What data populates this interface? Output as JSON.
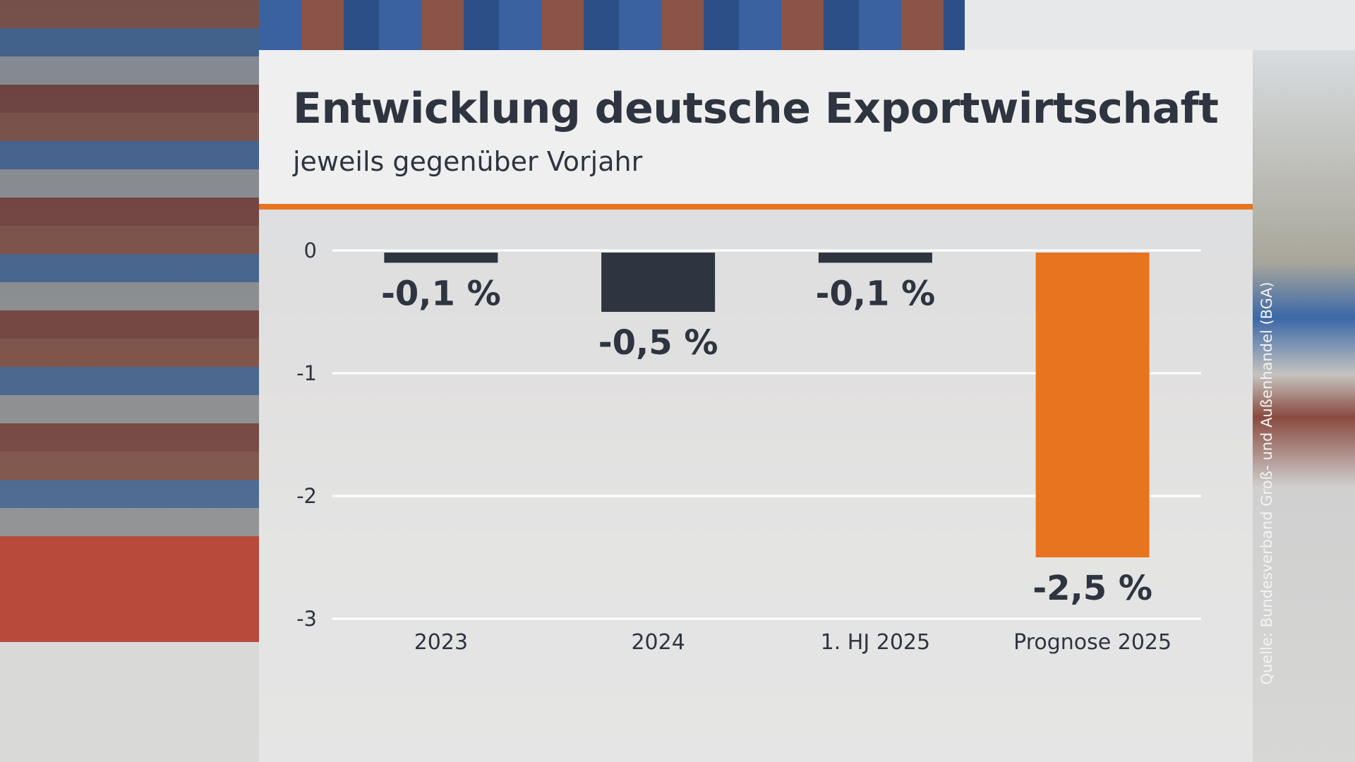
{
  "header": {
    "title": "Entwicklung deutsche Exportwirtschaft",
    "subtitle": "jeweils gegenüber Vorjahr"
  },
  "source": "Quelle: Bundesverband Groß- und Außenhandel (BGA)",
  "chart_data": {
    "type": "bar",
    "title": "Entwicklung deutsche Exportwirtschaft",
    "subtitle": "jeweils gegenüber Vorjahr",
    "categories": [
      "2023",
      "2024",
      "1. HJ 2025",
      "Prognose 2025"
    ],
    "values": [
      -0.1,
      -0.5,
      -0.1,
      -2.5
    ],
    "data_labels": [
      "-0,1 %",
      "-0,5 %",
      "-0,1 %",
      "-2,5 %"
    ],
    "bar_colors": [
      "#2e3440",
      "#2e3440",
      "#2e3440",
      "#e8741f"
    ],
    "yticks": [
      0,
      -1,
      -2,
      -3
    ],
    "ytick_labels": [
      "0",
      "-1",
      "-2",
      "-3"
    ],
    "ylim": [
      -3,
      0
    ],
    "grid": true,
    "accent_color": "#e8741f"
  }
}
